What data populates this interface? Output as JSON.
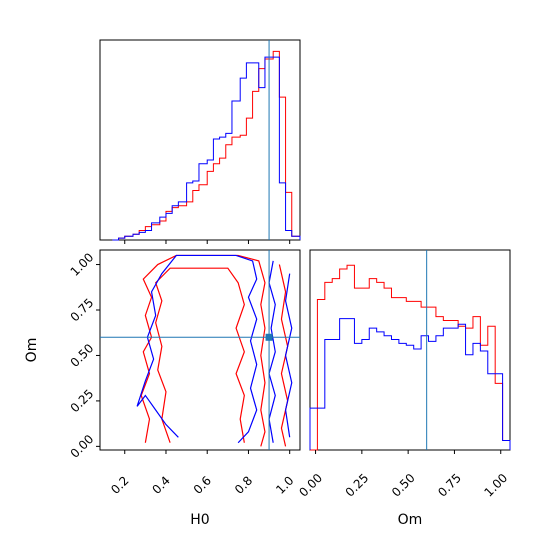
{
  "chart_data": [
    {
      "type": "histogram",
      "panel": "top-left",
      "parameter": "H0",
      "xlim": [
        0.08,
        1.05
      ],
      "ylim": [
        0,
        1.05
      ],
      "truth": 0.9,
      "bins_x": [
        0.14,
        0.17,
        0.2,
        0.24,
        0.27,
        0.3,
        0.33,
        0.37,
        0.4,
        0.43,
        0.46,
        0.5,
        0.53,
        0.56,
        0.6,
        0.63,
        0.66,
        0.69,
        0.72,
        0.76,
        0.79,
        0.82,
        0.85,
        0.88,
        0.92,
        0.95,
        0.98,
        1.01,
        1.05
      ],
      "series": [
        {
          "color": "#ff0000",
          "values": [
            0.0,
            0.01,
            0.02,
            0.03,
            0.05,
            0.07,
            0.08,
            0.1,
            0.15,
            0.17,
            0.18,
            0.2,
            0.26,
            0.29,
            0.36,
            0.4,
            0.43,
            0.5,
            0.54,
            0.55,
            0.64,
            0.78,
            0.9,
            0.95,
            0.99,
            0.75,
            0.25,
            0.02
          ]
        },
        {
          "color": "#0000ff",
          "values": [
            0.0,
            0.01,
            0.02,
            0.03,
            0.04,
            0.05,
            0.09,
            0.12,
            0.14,
            0.18,
            0.2,
            0.3,
            0.31,
            0.4,
            0.42,
            0.53,
            0.54,
            0.56,
            0.73,
            0.85,
            0.93,
            0.93,
            0.8,
            0.96,
            0.96,
            0.3,
            0.05,
            0.02
          ]
        }
      ]
    },
    {
      "type": "contour",
      "panel": "bottom-left",
      "xlabel": "H0",
      "ylabel": "Om",
      "xlim": [
        0.08,
        1.05
      ],
      "ylim": [
        -0.02,
        1.08
      ],
      "xticks": [
        "0.2",
        "0.4",
        "0.6",
        "0.8",
        "1.0"
      ],
      "xtick_values": [
        0.2,
        0.4,
        0.6,
        0.8,
        1.0
      ],
      "yticks": [
        "0.00",
        "0.25",
        "0.50",
        "0.75",
        "1.00"
      ],
      "ytick_values": [
        0.0,
        0.25,
        0.5,
        0.75,
        1.0
      ],
      "truth": {
        "H0": 0.9,
        "Om": 0.6
      },
      "series": [
        {
          "color": "#ff0000",
          "paths": [
            [
              [
                0.3,
                0.02
              ],
              [
                0.32,
                0.15
              ],
              [
                0.28,
                0.28
              ],
              [
                0.32,
                0.4
              ],
              [
                0.29,
                0.52
              ],
              [
                0.33,
                0.6
              ],
              [
                0.3,
                0.72
              ],
              [
                0.33,
                0.82
              ],
              [
                0.29,
                0.92
              ],
              [
                0.36,
                1.0
              ],
              [
                0.45,
                1.05
              ],
              [
                0.6,
                1.05
              ],
              [
                0.75,
                1.05
              ],
              [
                0.85,
                1.02
              ],
              [
                0.88,
                0.9
              ],
              [
                0.86,
                0.78
              ],
              [
                0.88,
                0.65
              ],
              [
                0.86,
                0.5
              ],
              [
                0.88,
                0.35
              ],
              [
                0.86,
                0.2
              ],
              [
                0.88,
                0.08
              ],
              [
                0.86,
                0.0
              ]
            ],
            [
              [
                0.42,
                0.02
              ],
              [
                0.38,
                0.15
              ],
              [
                0.4,
                0.3
              ],
              [
                0.36,
                0.42
              ],
              [
                0.38,
                0.55
              ],
              [
                0.35,
                0.68
              ],
              [
                0.38,
                0.8
              ],
              [
                0.35,
                0.9
              ],
              [
                0.42,
                0.98
              ],
              [
                0.55,
                0.98
              ],
              [
                0.7,
                0.98
              ],
              [
                0.75,
                0.9
              ],
              [
                0.78,
                0.78
              ],
              [
                0.74,
                0.65
              ],
              [
                0.78,
                0.52
              ],
              [
                0.74,
                0.4
              ],
              [
                0.78,
                0.28
              ],
              [
                0.76,
                0.15
              ],
              [
                0.78,
                0.02
              ]
            ],
            [
              [
                0.95,
                1.0
              ],
              [
                0.98,
                0.85
              ],
              [
                0.96,
                0.7
              ],
              [
                0.99,
                0.55
              ],
              [
                0.96,
                0.4
              ],
              [
                0.99,
                0.25
              ],
              [
                0.96,
                0.1
              ],
              [
                0.98,
                0.0
              ]
            ]
          ]
        },
        {
          "color": "#0000ff",
          "paths": [
            [
              [
                0.46,
                0.05
              ],
              [
                0.4,
                0.12
              ],
              [
                0.35,
                0.2
              ],
              [
                0.3,
                0.28
              ],
              [
                0.26,
                0.22
              ],
              [
                0.3,
                0.36
              ],
              [
                0.34,
                0.48
              ],
              [
                0.31,
                0.6
              ],
              [
                0.35,
                0.72
              ],
              [
                0.33,
                0.85
              ],
              [
                0.38,
                0.95
              ],
              [
                0.45,
                1.05
              ],
              [
                0.6,
                1.05
              ],
              [
                0.74,
                1.05
              ],
              [
                0.82,
                1.02
              ],
              [
                0.84,
                0.92
              ],
              [
                0.8,
                0.82
              ],
              [
                0.84,
                0.7
              ],
              [
                0.81,
                0.58
              ],
              [
                0.84,
                0.45
              ],
              [
                0.81,
                0.32
              ],
              [
                0.84,
                0.2
              ],
              [
                0.8,
                0.08
              ],
              [
                0.75,
                0.02
              ]
            ],
            [
              [
                0.92,
                1.02
              ],
              [
                0.9,
                0.9
              ],
              [
                0.93,
                0.78
              ],
              [
                0.91,
                0.65
              ],
              [
                0.93,
                0.52
              ],
              [
                0.9,
                0.4
              ],
              [
                0.93,
                0.28
              ],
              [
                0.9,
                0.15
              ],
              [
                0.92,
                0.02
              ]
            ],
            [
              [
                1.0,
                0.95
              ],
              [
                0.98,
                0.8
              ],
              [
                1.01,
                0.65
              ],
              [
                0.98,
                0.5
              ],
              [
                1.01,
                0.35
              ],
              [
                0.98,
                0.2
              ],
              [
                1.0,
                0.05
              ]
            ]
          ]
        }
      ]
    },
    {
      "type": "histogram",
      "panel": "bottom-right",
      "parameter": "Om",
      "xlabel": "Om",
      "xlim": [
        -0.03,
        1.05
      ],
      "ylim": [
        0,
        1.05
      ],
      "truth": 0.6,
      "xticks": [
        "0.00",
        "0.25",
        "0.50",
        "0.75",
        "1.00"
      ],
      "xtick_values": [
        0.0,
        0.25,
        0.5,
        0.75,
        1.0
      ],
      "bins_x": [
        -0.03,
        0.01,
        0.05,
        0.09,
        0.13,
        0.17,
        0.21,
        0.25,
        0.29,
        0.33,
        0.37,
        0.41,
        0.45,
        0.49,
        0.53,
        0.57,
        0.61,
        0.65,
        0.69,
        0.73,
        0.77,
        0.81,
        0.85,
        0.89,
        0.93,
        0.97,
        1.01,
        1.05
      ],
      "series": [
        {
          "color": "#ff0000",
          "values": [
            0.0,
            0.79,
            0.88,
            0.9,
            0.95,
            0.97,
            0.85,
            0.85,
            0.9,
            0.88,
            0.85,
            0.8,
            0.8,
            0.78,
            0.78,
            0.75,
            0.75,
            0.7,
            0.68,
            0.68,
            0.65,
            0.64,
            0.7,
            0.55,
            0.65,
            0.35,
            0.05
          ]
        },
        {
          "color": "#0000ff",
          "values": [
            0.22,
            0.22,
            0.58,
            0.58,
            0.69,
            0.69,
            0.56,
            0.58,
            0.64,
            0.62,
            0.6,
            0.58,
            0.56,
            0.55,
            0.53,
            0.6,
            0.57,
            0.6,
            0.64,
            0.64,
            0.66,
            0.5,
            0.56,
            0.52,
            0.4,
            0.4,
            0.05
          ]
        }
      ]
    }
  ]
}
